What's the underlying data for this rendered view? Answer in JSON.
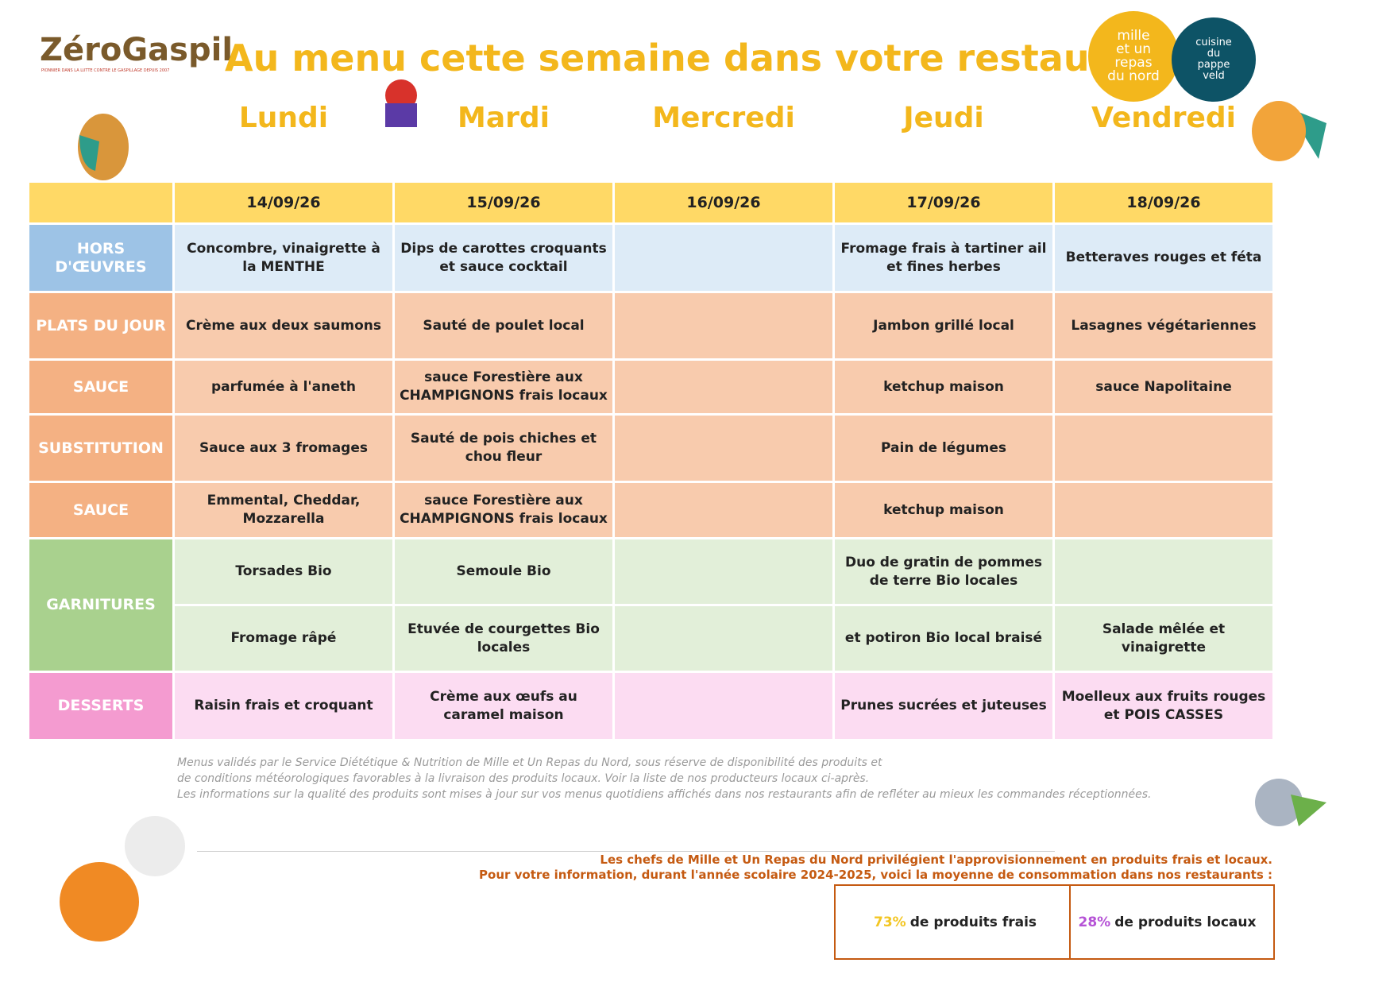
{
  "header": {
    "logo": {
      "name": "ZéroGaspil",
      "tagline": "PIONNIER DANS LA LUTTE CONTRE LE GASPILLAGE DEPUIS 2007"
    },
    "title": "Au menu cette semaine dans votre restaurant",
    "partner_logos": [
      [
        "mille",
        "et un",
        "repas",
        "du nord"
      ],
      [
        "cuisine",
        "du",
        "pappe",
        "veld"
      ]
    ]
  },
  "days": [
    "Lundi",
    "Mardi",
    "Mercredi",
    "Jeudi",
    "Vendredi"
  ],
  "table": {
    "dates": [
      "14/09/26",
      "15/09/26",
      "16/09/26",
      "17/09/26",
      "18/09/26"
    ],
    "rows": [
      {
        "label": "HORS D'ŒUVRES",
        "cells": [
          [
            "Concombre, vinaigrette à la MENTHE",
            "Dips de carottes croquants et sauce cocktail",
            null,
            "Fromage frais à tartiner ail et fines herbes",
            "Betteraves rouges et féta"
          ]
        ]
      },
      {
        "label": "PLATS DU JOUR",
        "cells": [
          [
            "Crème aux deux saumons",
            "Sauté de poulet local",
            null,
            "Jambon grillé local",
            "Lasagnes végétariennes"
          ]
        ]
      },
      {
        "label": "SAUCE",
        "cells": [
          [
            "parfumée à l'aneth",
            "sauce Forestière aux CHAMPIGNONS frais locaux",
            null,
            "ketchup maison",
            "sauce Napolitaine"
          ]
        ]
      },
      {
        "label": "SUBSTITUTION",
        "cells": [
          [
            "Sauce aux 3 fromages",
            "Sauté de pois chiches et chou fleur",
            null,
            "Pain de légumes",
            null
          ]
        ]
      },
      {
        "label": "SAUCE",
        "cells": [
          [
            "Emmental, Cheddar, Mozzarella",
            "sauce Forestière aux CHAMPIGNONS frais locaux",
            null,
            "ketchup maison",
            null
          ]
        ]
      },
      {
        "label": "GARNITURES",
        "cells": [
          [
            "Torsades Bio",
            "Semoule Bio",
            null,
            "Duo de gratin de pommes de terre Bio locales",
            null
          ],
          [
            "Fromage râpé",
            "Etuvée de courgettes Bio locales",
            null,
            "et potiron Bio local braisé",
            "Salade mêlée et vinaigrette"
          ]
        ]
      },
      {
        "label": "DESSERTS",
        "cells": [
          [
            "Raisin frais et croquant",
            "Crème aux œufs au caramel maison",
            null,
            "Prunes sucrées et juteuses",
            "Moelleux aux fruits rouges et POIS CASSES"
          ]
        ]
      }
    ]
  },
  "footnote": [
    "Menus validés par le Service Diététique & Nutrition de Mille et Un Repas du Nord, sous réserve de disponibilité des produits et",
    "de conditions météorologiques favorables à la livraison des produits locaux. Voir la liste de nos producteurs locaux ci-après.",
    "Les informations sur la qualité des produits sont mises à jour sur vos menus quotidiens affichés dans nos restaurants afin de refléter au mieux les commandes réceptionnées."
  ],
  "info": [
    "Les chefs de Mille et Un Repas du Nord privilégient l'approvisionnement en produits frais et locaux.",
    "Pour votre information, durant l'année scolaire 2024-2025, voici la moyenne de consommation dans nos restaurants :"
  ],
  "stats": [
    {
      "value": "73%",
      "text": "de produits frais"
    },
    {
      "value": "28%",
      "text": "de produits locaux"
    }
  ]
}
